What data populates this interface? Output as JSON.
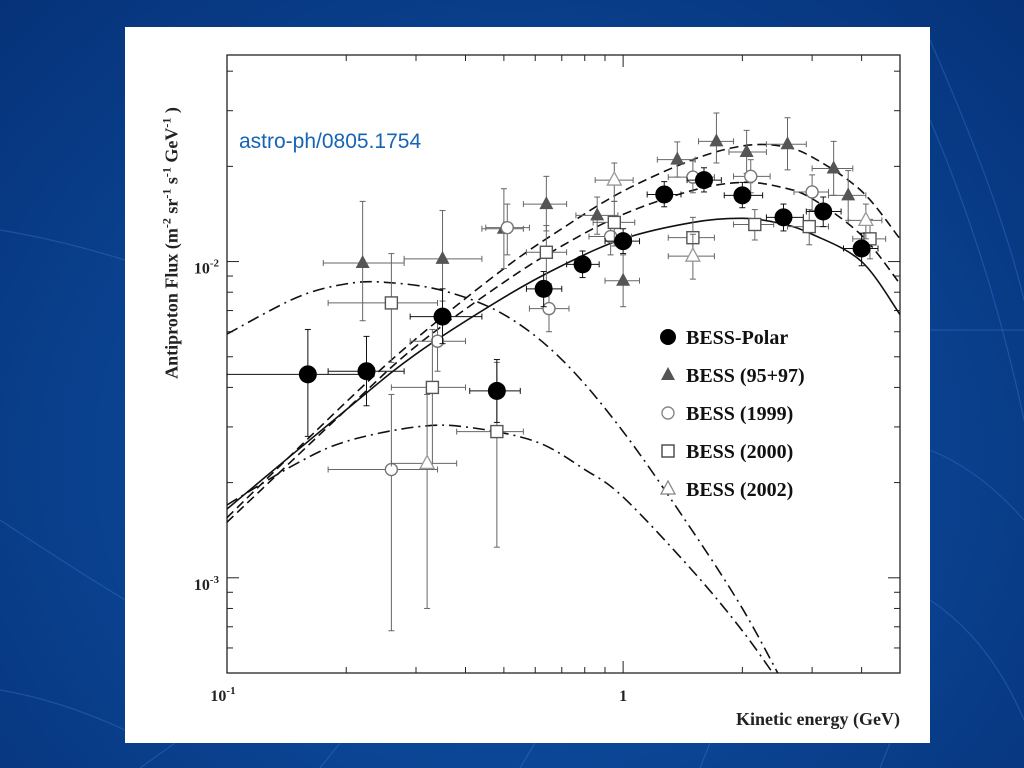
{
  "slide": {
    "reference": "astro-ph/0805.1754",
    "background_color": "#0b4696"
  },
  "chart_data": {
    "type": "scatter",
    "xscale": "log",
    "yscale": "log",
    "xlim": [
      0.1,
      5
    ],
    "ylim": [
      0.0005,
      0.045
    ],
    "xlabel": "Kinetic energy (GeV)",
    "ylabel": "Antiproton Flux (m^-2 sr^-1 s^-1 GeV^-1 )",
    "xticks": [
      {
        "base": "10",
        "exp": "-1",
        "value": 0.1
      },
      {
        "base": "1",
        "exp": "",
        "value": 1
      }
    ],
    "yticks": [
      {
        "base": "10",
        "exp": "-3",
        "value": 0.001
      },
      {
        "base": "10",
        "exp": "-2",
        "value": 0.01
      }
    ],
    "legend_position": "center-right",
    "legend": [
      {
        "label": "BESS-Polar",
        "marker": "filled-circle"
      },
      {
        "label": "BESS (95+97)",
        "marker": "filled-triangle"
      },
      {
        "label": "BESS (1999)",
        "marker": "open-circle"
      },
      {
        "label": "BESS (2000)",
        "marker": "open-square"
      },
      {
        "label": "BESS (2002)",
        "marker": "open-triangle"
      }
    ],
    "series": [
      {
        "name": "BESS-Polar",
        "marker": "filled-circle",
        "color": "#000000",
        "points": [
          {
            "x": 0.16,
            "y": 0.0044,
            "xerr": [
              0.1,
              0.22
            ],
            "yerr": [
              0.0028,
              0.0061
            ]
          },
          {
            "x": 0.225,
            "y": 0.0045,
            "xerr": [
              0.18,
              0.28
            ],
            "yerr": [
              0.0035,
              0.0058
            ]
          },
          {
            "x": 0.35,
            "y": 0.0067,
            "xerr": [
              0.29,
              0.44
            ],
            "yerr": [
              0.0055,
              0.0082
            ]
          },
          {
            "x": 0.48,
            "y": 0.0039,
            "xerr": [
              0.41,
              0.55
            ],
            "yerr": [
              0.0031,
              0.0049
            ]
          },
          {
            "x": 0.63,
            "y": 0.0082,
            "xerr": [
              0.57,
              0.7
            ],
            "yerr": [
              0.0072,
              0.0093
            ]
          },
          {
            "x": 0.79,
            "y": 0.0098,
            "xerr": [
              0.72,
              0.87
            ],
            "yerr": [
              0.0089,
              0.0108
            ]
          },
          {
            "x": 1.0,
            "y": 0.0116,
            "xerr": [
              0.9,
              1.1
            ],
            "yerr": [
              0.0106,
              0.0127
            ]
          },
          {
            "x": 1.27,
            "y": 0.0163,
            "xerr": [
              1.15,
              1.4
            ],
            "yerr": [
              0.0149,
              0.0179
            ]
          },
          {
            "x": 1.6,
            "y": 0.0181,
            "xerr": [
              1.45,
              1.77
            ],
            "yerr": [
              0.0166,
              0.0198
            ]
          },
          {
            "x": 2.0,
            "y": 0.0162,
            "xerr": [
              1.8,
              2.25
            ],
            "yerr": [
              0.0148,
              0.0178
            ]
          },
          {
            "x": 2.54,
            "y": 0.0138,
            "xerr": [
              2.3,
              2.85
            ],
            "yerr": [
              0.0125,
              0.0152
            ]
          },
          {
            "x": 3.2,
            "y": 0.0144,
            "xerr": [
              2.9,
              3.55
            ],
            "yerr": [
              0.0129,
              0.016
            ]
          },
          {
            "x": 4.0,
            "y": 0.011,
            "xerr": [
              3.6,
              4.4
            ],
            "yerr": [
              0.0097,
              0.0123
            ]
          }
        ]
      },
      {
        "name": "BESS (95+97)",
        "marker": "filled-triangle",
        "color": "#555555",
        "points": [
          {
            "x": 0.22,
            "y": 0.0099,
            "xerr": [
              0.175,
              0.28
            ],
            "yerr": [
              0.0065,
              0.0155
            ]
          },
          {
            "x": 0.35,
            "y": 0.0102,
            "xerr": [
              0.28,
              0.44
            ],
            "yerr": [
              0.0075,
              0.0145
            ]
          },
          {
            "x": 0.5,
            "y": 0.0127,
            "xerr": [
              0.44,
              0.56
            ],
            "yerr": [
              0.0095,
              0.017
            ]
          },
          {
            "x": 0.64,
            "y": 0.0152,
            "xerr": [
              0.56,
              0.72
            ],
            "yerr": [
              0.0125,
              0.0186
            ]
          },
          {
            "x": 0.86,
            "y": 0.014,
            "xerr": [
              0.76,
              0.97
            ],
            "yerr": [
              0.0122,
              0.016
            ]
          },
          {
            "x": 1.0,
            "y": 0.0087,
            "xerr": [
              0.9,
              1.1
            ],
            "yerr": [
              0.0072,
              0.0105
            ]
          },
          {
            "x": 1.37,
            "y": 0.021,
            "xerr": [
              1.22,
              1.52
            ],
            "yerr": [
              0.0185,
              0.0239
            ]
          },
          {
            "x": 1.72,
            "y": 0.024,
            "xerr": [
              1.55,
              1.9
            ],
            "yerr": [
              0.0205,
              0.0295
            ]
          },
          {
            "x": 2.05,
            "y": 0.0222,
            "xerr": [
              1.85,
              2.3
            ],
            "yerr": [
              0.019,
              0.026
            ]
          },
          {
            "x": 2.6,
            "y": 0.0235,
            "xerr": [
              2.3,
              2.9
            ],
            "yerr": [
              0.0195,
              0.0285
            ]
          },
          {
            "x": 3.4,
            "y": 0.0197,
            "xerr": [
              3.0,
              3.8
            ],
            "yerr": [
              0.0162,
              0.024
            ]
          },
          {
            "x": 3.7,
            "y": 0.0162,
            "xerr": [
              3.3,
              4.1
            ],
            "yerr": [
              0.0135,
              0.0194
            ]
          }
        ]
      },
      {
        "name": "BESS (1999)",
        "marker": "open-circle",
        "color": "#777777",
        "points": [
          {
            "x": 0.26,
            "y": 0.0022,
            "xerr": [
              0.18,
              0.34
            ],
            "yerr": [
              0.00068,
              0.0038
            ]
          },
          {
            "x": 0.34,
            "y": 0.0056,
            "xerr": [
              0.29,
              0.4
            ],
            "yerr": [
              0.0045,
              0.0068
            ]
          },
          {
            "x": 0.51,
            "y": 0.0128,
            "xerr": [
              0.45,
              0.58
            ],
            "yerr": [
              0.0105,
              0.0152
            ]
          },
          {
            "x": 0.65,
            "y": 0.0071,
            "xerr": [
              0.58,
              0.73
            ],
            "yerr": [
              0.006,
              0.0085
            ]
          },
          {
            "x": 0.93,
            "y": 0.012,
            "xerr": [
              0.82,
              1.05
            ],
            "yerr": [
              0.0105,
              0.0137
            ]
          },
          {
            "x": 1.5,
            "y": 0.0185,
            "xerr": [
              1.3,
              1.7
            ],
            "yerr": [
              0.0165,
              0.0208
            ]
          },
          {
            "x": 2.1,
            "y": 0.0186,
            "xerr": [
              1.9,
              2.35
            ],
            "yerr": [
              0.0165,
              0.021
            ]
          },
          {
            "x": 3.0,
            "y": 0.0166,
            "xerr": [
              2.7,
              3.3
            ],
            "yerr": [
              0.0145,
              0.0188
            ]
          }
        ]
      },
      {
        "name": "BESS (2000)",
        "marker": "open-square",
        "color": "#555555",
        "points": [
          {
            "x": 0.26,
            "y": 0.0074,
            "xerr": [
              0.18,
              0.34
            ],
            "yerr": [
              0.0048,
              0.0106
            ]
          },
          {
            "x": 0.33,
            "y": 0.004,
            "xerr": [
              0.26,
              0.4
            ],
            "yerr": [
              0.0022,
              0.0061
            ]
          },
          {
            "x": 0.48,
            "y": 0.0029,
            "xerr": [
              0.38,
              0.56
            ],
            "yerr": [
              0.00125,
              0.0048
            ]
          },
          {
            "x": 0.64,
            "y": 0.0107,
            "xerr": [
              0.57,
              0.72
            ],
            "yerr": [
              0.0085,
              0.013
            ]
          },
          {
            "x": 0.95,
            "y": 0.0133,
            "xerr": [
              0.84,
              1.07
            ],
            "yerr": [
              0.0112,
              0.0155
            ]
          },
          {
            "x": 1.5,
            "y": 0.0119,
            "xerr": [
              1.3,
              1.7
            ],
            "yerr": [
              0.0102,
              0.0138
            ]
          },
          {
            "x": 2.15,
            "y": 0.0131,
            "xerr": [
              1.9,
              2.4
            ],
            "yerr": [
              0.0117,
              0.0146
            ]
          },
          {
            "x": 2.95,
            "y": 0.0129,
            "xerr": [
              2.6,
              3.3
            ],
            "yerr": [
              0.0113,
              0.0146
            ]
          },
          {
            "x": 4.2,
            "y": 0.0118,
            "xerr": [
              3.8,
              4.6
            ],
            "yerr": [
              0.0102,
              0.0136
            ]
          }
        ]
      },
      {
        "name": "BESS (2002)",
        "marker": "open-triangle",
        "color": "#999999",
        "points": [
          {
            "x": 0.32,
            "y": 0.0023,
            "xerr": [
              0.26,
              0.38
            ],
            "yerr": [
              0.0008,
              0.0038
            ]
          },
          {
            "x": 0.95,
            "y": 0.0181,
            "xerr": [
              0.85,
              1.06
            ],
            "yerr": [
              0.0155,
              0.0205
            ]
          },
          {
            "x": 1.5,
            "y": 0.0104,
            "xerr": [
              1.3,
              1.7
            ],
            "yerr": [
              0.0088,
              0.0122
            ]
          },
          {
            "x": 4.1,
            "y": 0.0135,
            "xerr": [
              3.7,
              4.5
            ],
            "yerr": [
              0.0118,
              0.0152
            ]
          }
        ]
      }
    ],
    "curves": [
      {
        "style": "solid",
        "points": [
          [
            0.1,
            0.00165
          ],
          [
            0.2,
            0.0034
          ],
          [
            0.3,
            0.0051
          ],
          [
            0.5,
            0.0077
          ],
          [
            0.7,
            0.0097
          ],
          [
            1.0,
            0.0118
          ],
          [
            1.5,
            0.0133
          ],
          [
            2.0,
            0.0137
          ],
          [
            2.5,
            0.0132
          ],
          [
            3.0,
            0.0122
          ],
          [
            4.0,
            0.01
          ],
          [
            5.0,
            0.0068
          ]
        ]
      },
      {
        "style": "dashed-upper",
        "points": [
          [
            0.1,
            0.00155
          ],
          [
            0.2,
            0.0036
          ],
          [
            0.3,
            0.0057
          ],
          [
            0.5,
            0.0095
          ],
          [
            0.7,
            0.0127
          ],
          [
            1.0,
            0.0167
          ],
          [
            1.5,
            0.021
          ],
          [
            2.0,
            0.0232
          ],
          [
            2.5,
            0.0232
          ],
          [
            3.0,
            0.0214
          ],
          [
            4.0,
            0.0167
          ],
          [
            5.0,
            0.0118
          ]
        ]
      },
      {
        "style": "dashed-lower",
        "points": [
          [
            0.1,
            0.0015
          ],
          [
            0.2,
            0.0034
          ],
          [
            0.3,
            0.0054
          ],
          [
            0.5,
            0.0086
          ],
          [
            0.7,
            0.0112
          ],
          [
            1.0,
            0.0141
          ],
          [
            1.5,
            0.0168
          ],
          [
            2.0,
            0.0178
          ],
          [
            2.5,
            0.0172
          ],
          [
            3.0,
            0.0158
          ],
          [
            4.0,
            0.0121
          ],
          [
            5.0,
            0.0085
          ]
        ]
      },
      {
        "style": "dashdot-upper",
        "points": [
          [
            0.1,
            0.0059
          ],
          [
            0.15,
            0.0077
          ],
          [
            0.2,
            0.0085
          ],
          [
            0.25,
            0.0086
          ],
          [
            0.35,
            0.0081
          ],
          [
            0.5,
            0.0068
          ],
          [
            0.7,
            0.0049
          ],
          [
            1.0,
            0.0029
          ],
          [
            1.5,
            0.0014
          ],
          [
            2.0,
            0.0008
          ],
          [
            2.5,
            0.00048
          ]
        ]
      },
      {
        "style": "dashdot-lower",
        "points": [
          [
            0.1,
            0.0017
          ],
          [
            0.15,
            0.0023
          ],
          [
            0.2,
            0.0027
          ],
          [
            0.3,
            0.003
          ],
          [
            0.4,
            0.003
          ],
          [
            0.6,
            0.0027
          ],
          [
            0.8,
            0.0022
          ],
          [
            1.0,
            0.0018
          ],
          [
            1.5,
            0.00105
          ],
          [
            2.0,
            0.00068
          ],
          [
            2.5,
            0.00046
          ]
        ]
      }
    ]
  }
}
